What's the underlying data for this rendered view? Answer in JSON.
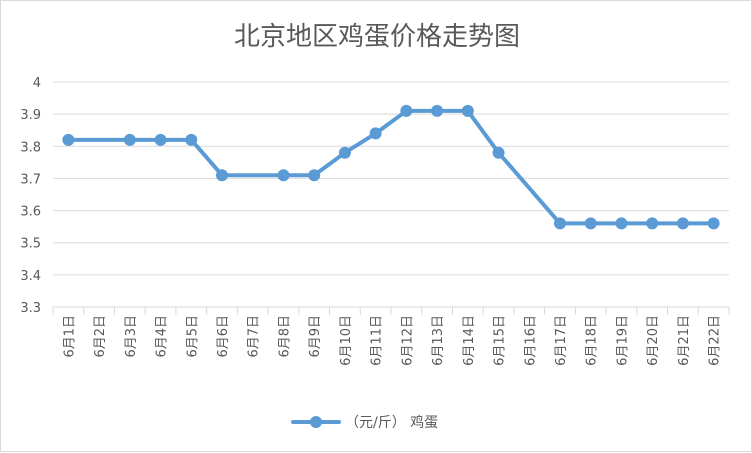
{
  "chart_data": {
    "type": "line",
    "title": "北京地区鸡蛋价格走势图",
    "xlabel": "",
    "ylabel": "",
    "categories": [
      "6月1日",
      "6月2日",
      "6月3日",
      "6月4日",
      "6月5日",
      "6月6日",
      "6月7日",
      "6月8日",
      "6月9日",
      "6月10日",
      "6月11日",
      "6月12日",
      "6月13日",
      "6月14日",
      "6月15日",
      "6月16日",
      "6月17日",
      "6月18日",
      "6月19日",
      "6月20日",
      "6月21日",
      "6月22日"
    ],
    "series": [
      {
        "name": "（元/斤） 鸡蛋",
        "color": "#5b9bd5",
        "values": [
          3.82,
          null,
          3.82,
          3.82,
          3.82,
          3.71,
          null,
          3.71,
          3.71,
          3.78,
          3.84,
          3.91,
          3.91,
          3.91,
          3.78,
          null,
          3.56,
          3.56,
          3.56,
          3.56,
          3.56,
          3.56
        ]
      }
    ],
    "ylim": [
      3.3,
      4.0
    ],
    "yticks": [
      "3.3",
      "3.4",
      "3.5",
      "3.6",
      "3.7",
      "3.8",
      "3.9",
      "4"
    ],
    "grid": true,
    "legend": "bottom"
  }
}
